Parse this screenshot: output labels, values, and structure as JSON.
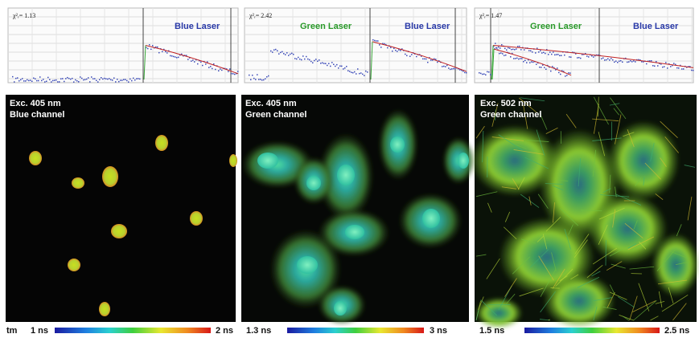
{
  "plots": [
    {
      "fit": "χ²ᵣ= 1.13",
      "labels": [
        "Blue Laser"
      ]
    },
    {
      "fit": "χ²ᵣ= 2.42",
      "labels": [
        "Green Laser",
        "Blue Laser"
      ]
    },
    {
      "fit": "χ²ᵣ= 1.47",
      "labels": [
        "Green Laser",
        "Blue Laser"
      ]
    }
  ],
  "images": [
    {
      "lines": [
        "Exc. 405 nm",
        "Blue channel"
      ]
    },
    {
      "lines": [
        "Exc. 405 nm",
        "Green channel"
      ]
    },
    {
      "lines": [
        "Exc. 502 nm",
        "Green channel"
      ]
    }
  ],
  "scales": [
    {
      "prefix": "tm",
      "min": "1 ns",
      "max": "2 ns"
    },
    {
      "min": "1.3 ns",
      "max": "3 ns"
    },
    {
      "min": "1.5 ns",
      "max": "2.5 ns"
    }
  ]
}
